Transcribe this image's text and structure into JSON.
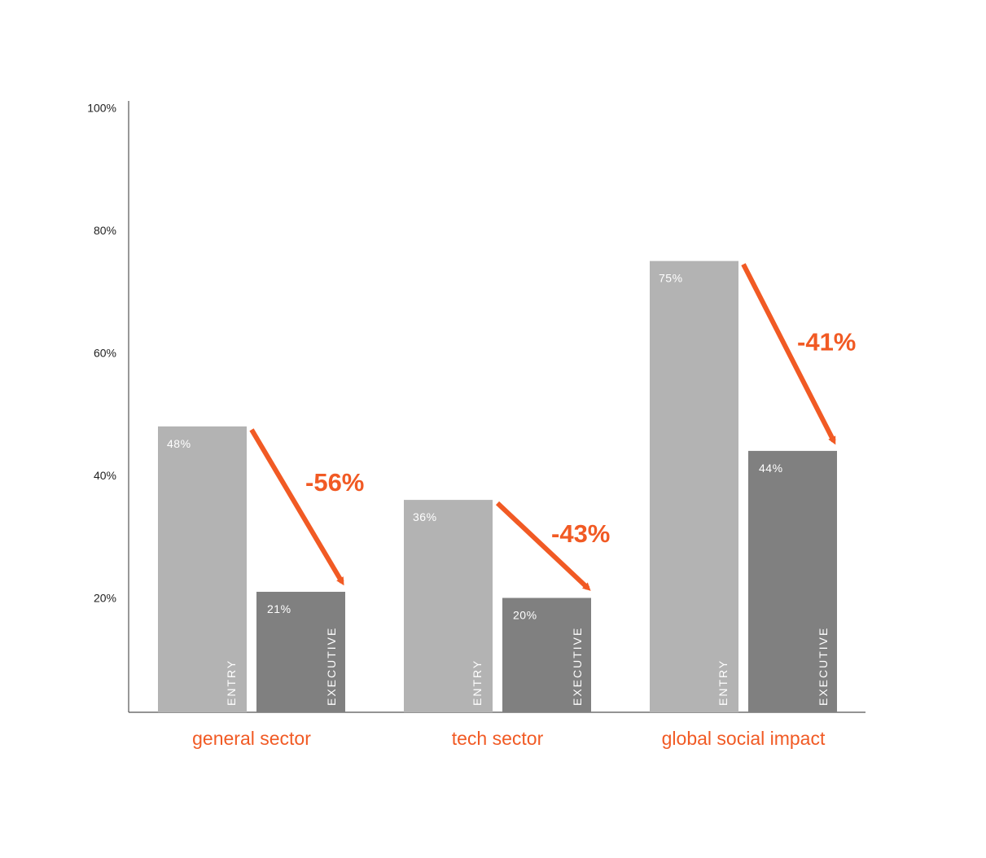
{
  "chart_data": {
    "type": "bar",
    "categories": [
      "general sector",
      "tech sector",
      "global social impact"
    ],
    "series": [
      {
        "name": "ENTRY",
        "values": [
          48,
          36,
          75
        ],
        "labels": [
          "48%",
          "36%",
          "75%"
        ]
      },
      {
        "name": "EXECUTIVE",
        "values": [
          21,
          20,
          44
        ],
        "labels": [
          "21%",
          "20%",
          "44%"
        ]
      }
    ],
    "changes": [
      "-56%",
      "-43%",
      "-41%"
    ],
    "y_ticks": [
      {
        "value": 20,
        "label": "20%"
      },
      {
        "value": 40,
        "label": "40%"
      },
      {
        "value": 60,
        "label": "60%"
      },
      {
        "value": 80,
        "label": "80%"
      },
      {
        "value": 100,
        "label": "100%"
      }
    ],
    "ylim": [
      0,
      100
    ],
    "grid": false,
    "colors": {
      "entry": "#b3b3b3",
      "executive": "#808080",
      "accent": "#f15a24",
      "axis": "#555555"
    }
  }
}
